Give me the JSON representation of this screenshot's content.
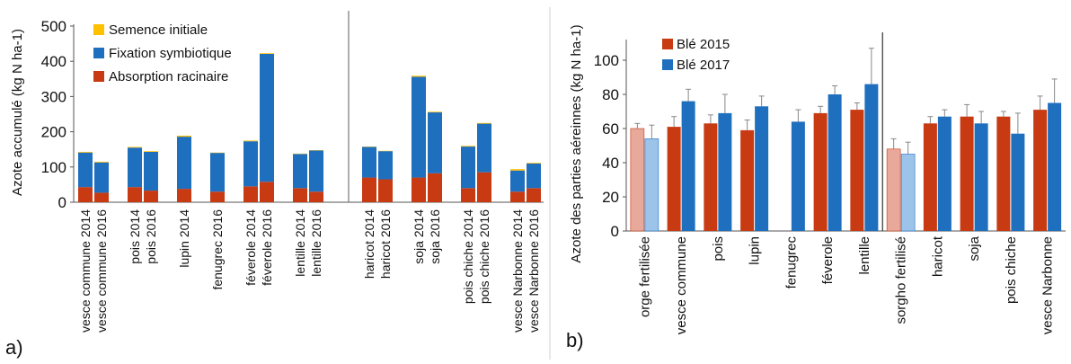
{
  "chart_data": [
    {
      "type": "bar",
      "panel_label": "a)",
      "stacked": true,
      "ylabel": "Azote accumulé (kg N ha-1)",
      "ylim": [
        0,
        500
      ],
      "yticks": [
        0,
        100,
        200,
        300,
        400,
        500
      ],
      "grid": false,
      "legend_position": "top-left",
      "colors": {
        "Semence initiale": "#ffc000",
        "Fixation symbiotique": "#1f6fbf",
        "Absorption racinaire": "#c83a12"
      },
      "groups": [
        {
          "categories": [
            "vesce commune 2014",
            "vesce commune 2016"
          ],
          "absorption": [
            43,
            27
          ],
          "fixation": [
            98,
            86
          ],
          "semence": [
            2,
            2
          ]
        },
        {
          "categories": [
            "pois 2014",
            "pois 2016"
          ],
          "absorption": [
            43,
            33
          ],
          "fixation": [
            112,
            110
          ],
          "semence": [
            2,
            2
          ]
        },
        {
          "categories": [
            "lupin 2014"
          ],
          "absorption": [
            38
          ],
          "fixation": [
            148
          ],
          "semence": [
            3
          ]
        },
        {
          "categories": [
            "fenugrec 2016"
          ],
          "absorption": [
            30
          ],
          "fixation": [
            110
          ],
          "semence": [
            1
          ]
        },
        {
          "categories": [
            "féverole 2014",
            "féverole 2016"
          ],
          "absorption": [
            45,
            58
          ],
          "fixation": [
            128,
            363
          ],
          "semence": [
            2,
            2
          ]
        },
        {
          "categories": [
            "lentille 2014",
            "lentille 2016"
          ],
          "absorption": [
            40,
            30
          ],
          "fixation": [
            97,
            117
          ],
          "semence": [
            1,
            1
          ]
        },
        {
          "separator": true
        },
        {
          "categories": [
            "haricot 2014",
            "haricot 2016"
          ],
          "absorption": [
            70,
            65
          ],
          "fixation": [
            87,
            80
          ],
          "semence": [
            1,
            1
          ]
        },
        {
          "categories": [
            "soja 2014",
            "soja 2016"
          ],
          "absorption": [
            70,
            82
          ],
          "fixation": [
            286,
            173
          ],
          "semence": [
            3,
            2
          ]
        },
        {
          "categories": [
            "pois chiche 2014",
            "pois chiche 2016"
          ],
          "absorption": [
            40,
            85
          ],
          "fixation": [
            118,
            138
          ],
          "semence": [
            2,
            2
          ]
        },
        {
          "categories": [
            "vesce Narbonne 2014",
            "vesce Narbonne 2016"
          ],
          "absorption": [
            30,
            40
          ],
          "fixation": [
            60,
            70
          ],
          "semence": [
            4,
            2
          ]
        }
      ],
      "series": [
        {
          "name": "Semence initiale"
        },
        {
          "name": "Fixation symbiotique"
        },
        {
          "name": "Absorption racinaire"
        }
      ]
    },
    {
      "type": "bar",
      "panel_label": "b)",
      "ylabel": "Azote des parties aéreinnes (kg N ha-1)",
      "ylim": [
        0,
        110
      ],
      "yticks": [
        0,
        20,
        40,
        60,
        80,
        100
      ],
      "grid": false,
      "legend_position": "top-left",
      "series": [
        {
          "name": "Blé 2015",
          "color": "#c83a12",
          "light_color": "#e8a89a"
        },
        {
          "name": "Blé 2017",
          "color": "#1f6fbf",
          "light_color": "#9cc4ea"
        }
      ],
      "categories": [
        "orge fertilisée",
        "vesce commune",
        "pois",
        "lupin",
        "fenugrec",
        "féverole",
        "lentille",
        "sorgho fertilisé",
        "haricot",
        "soja",
        "pois chiche",
        "vesce Narbonne"
      ],
      "reference_categories": [
        "orge fertilisée",
        "sorgho fertilisé"
      ],
      "separator_before": "sorgho fertilisé",
      "values_2015": [
        60,
        61,
        63,
        59,
        null,
        69,
        71,
        48,
        63,
        67,
        67,
        71
      ],
      "errors_2015": [
        3,
        6,
        5,
        6,
        null,
        4,
        4,
        6,
        4,
        7,
        3,
        8
      ],
      "values_2017": [
        54,
        76,
        69,
        73,
        64,
        80,
        86,
        45,
        67,
        63,
        57,
        75
      ],
      "errors_2017": [
        8,
        7,
        11,
        6,
        7,
        5,
        21,
        7,
        4,
        7,
        12,
        14
      ]
    }
  ]
}
